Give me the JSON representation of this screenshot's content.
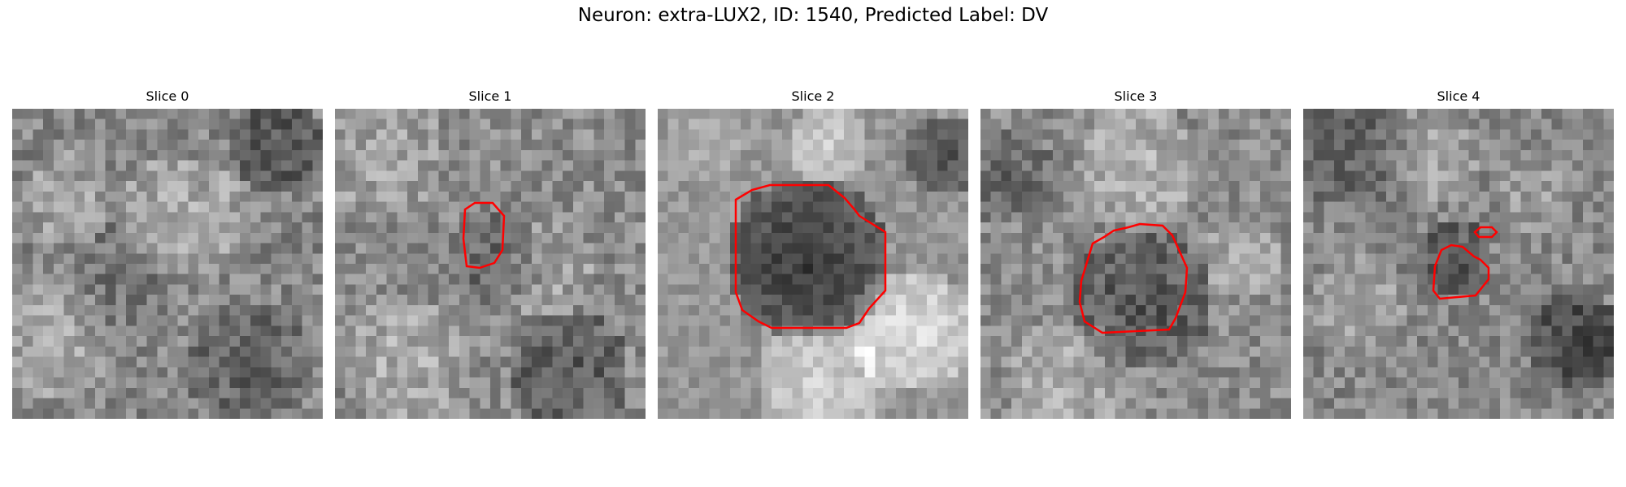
{
  "figure": {
    "title": "Neuron: extra-LUX2, ID: 1540, Predicted Label: DV"
  },
  "colors": {
    "contour": "#ff0000",
    "background": "#ffffff"
  },
  "panels": [
    {
      "title": "Slice 0",
      "has_contour": false
    },
    {
      "title": "Slice 1",
      "has_contour": true
    },
    {
      "title": "Slice 2",
      "has_contour": true
    },
    {
      "title": "Slice 3",
      "has_contour": true
    },
    {
      "title": "Slice 4",
      "has_contour": true
    }
  ]
}
